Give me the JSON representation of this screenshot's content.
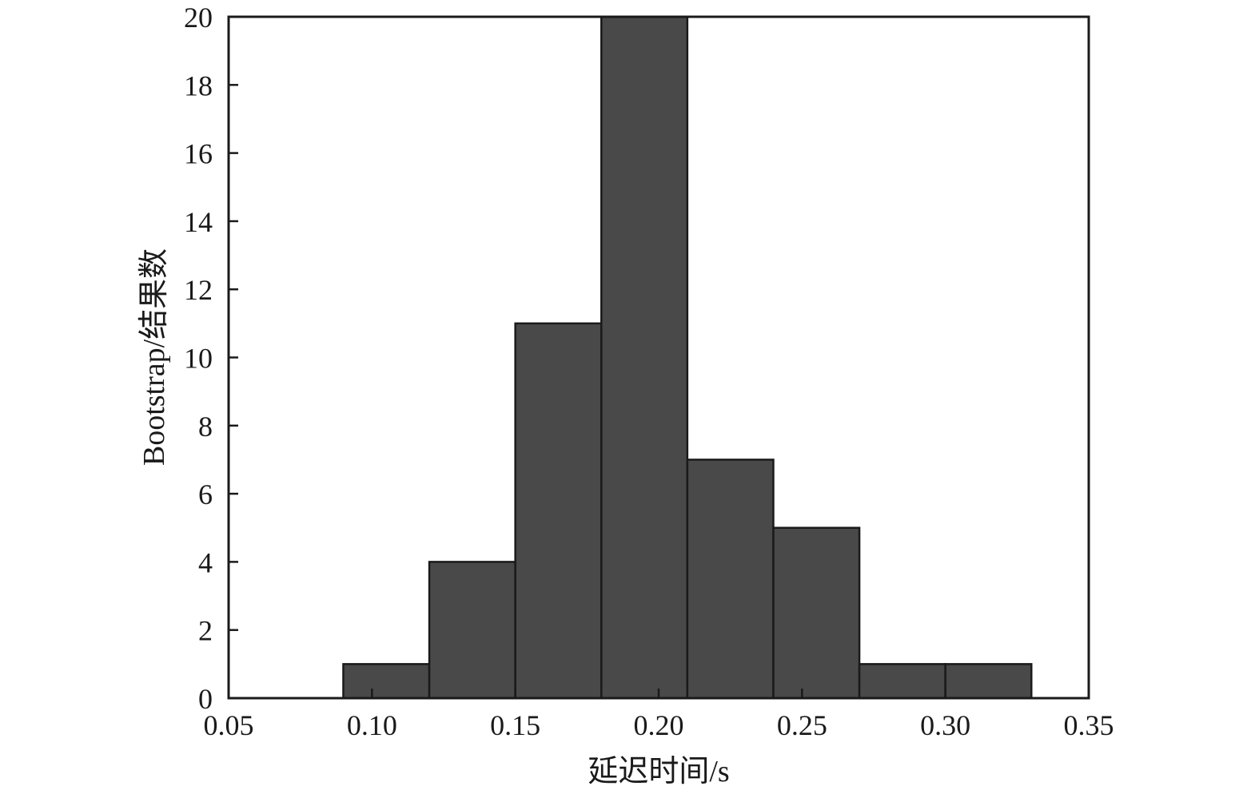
{
  "chart_data": {
    "type": "bar",
    "title": "",
    "xlabel": "延迟时间/s",
    "ylabel": "Bootstrap/结果数",
    "xlim": [
      0.05,
      0.35
    ],
    "ylim": [
      0,
      20
    ],
    "x_ticks": [
      "0.05",
      "0.10",
      "0.15",
      "0.20",
      "0.25",
      "0.30",
      "0.35"
    ],
    "x_tick_values": [
      0.05,
      0.1,
      0.15,
      0.2,
      0.25,
      0.3,
      0.35
    ],
    "y_ticks": [
      "0",
      "2",
      "4",
      "6",
      "8",
      "10",
      "12",
      "14",
      "16",
      "18",
      "20"
    ],
    "y_tick_values": [
      0,
      2,
      4,
      6,
      8,
      10,
      12,
      14,
      16,
      18,
      20
    ],
    "bin_width": 0.03,
    "bins": [
      {
        "start": 0.09,
        "end": 0.12,
        "value": 1
      },
      {
        "start": 0.12,
        "end": 0.15,
        "value": 4
      },
      {
        "start": 0.15,
        "end": 0.18,
        "value": 11
      },
      {
        "start": 0.18,
        "end": 0.21,
        "value": 20
      },
      {
        "start": 0.21,
        "end": 0.24,
        "value": 7
      },
      {
        "start": 0.24,
        "end": 0.27,
        "value": 5
      },
      {
        "start": 0.27,
        "end": 0.3,
        "value": 1
      },
      {
        "start": 0.3,
        "end": 0.33,
        "value": 1
      }
    ],
    "grid": false,
    "bar_color": "#4a494a"
  }
}
